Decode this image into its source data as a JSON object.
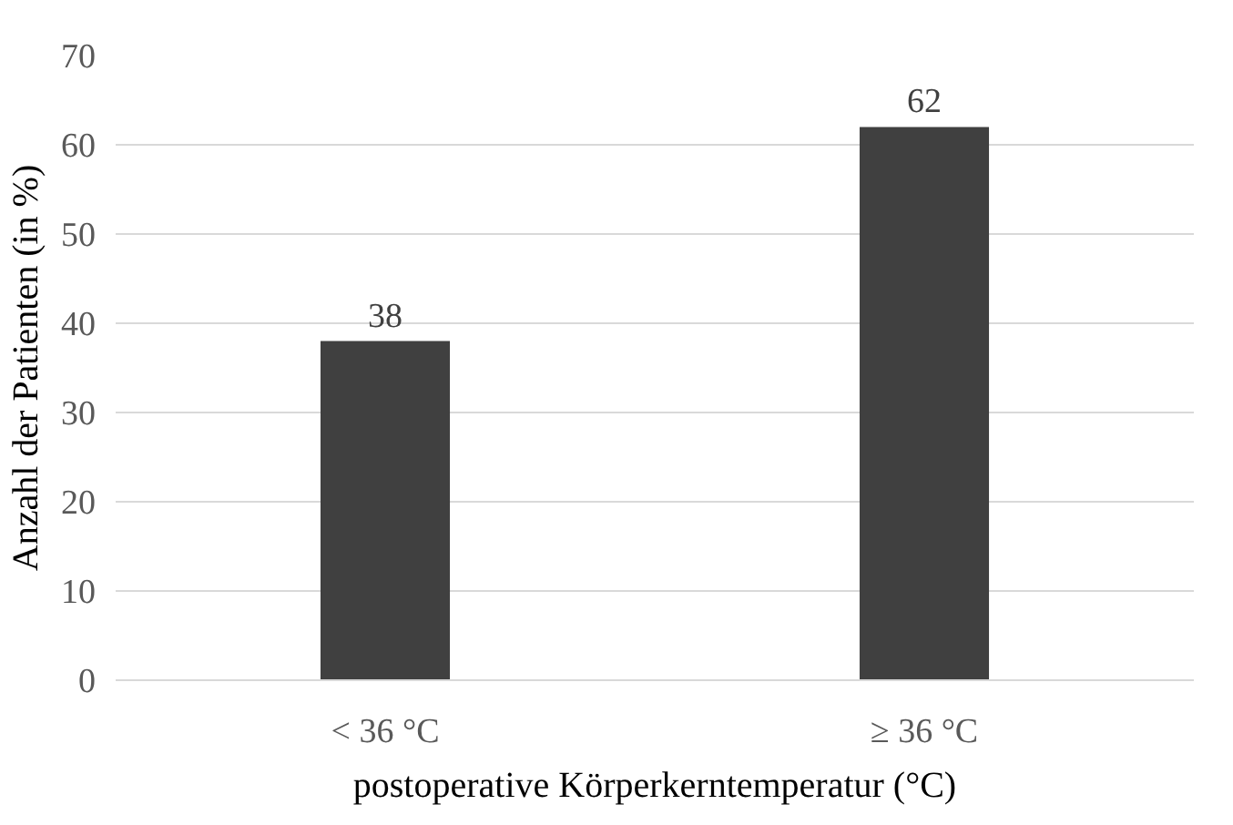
{
  "chart_data": {
    "type": "bar",
    "xlabel": "postoperative Körperkerntemperatur (°C)",
    "ylabel": "Anzahl der Patienten (in %)",
    "categories": [
      "< 36 °C",
      "≥ 36 °C"
    ],
    "values": [
      38,
      62
    ],
    "color": "#404040",
    "ylim": [
      0,
      70
    ],
    "yticks": [
      0,
      10,
      20,
      30,
      40,
      50,
      60,
      70
    ],
    "grid": "y",
    "data_labels": true
  }
}
